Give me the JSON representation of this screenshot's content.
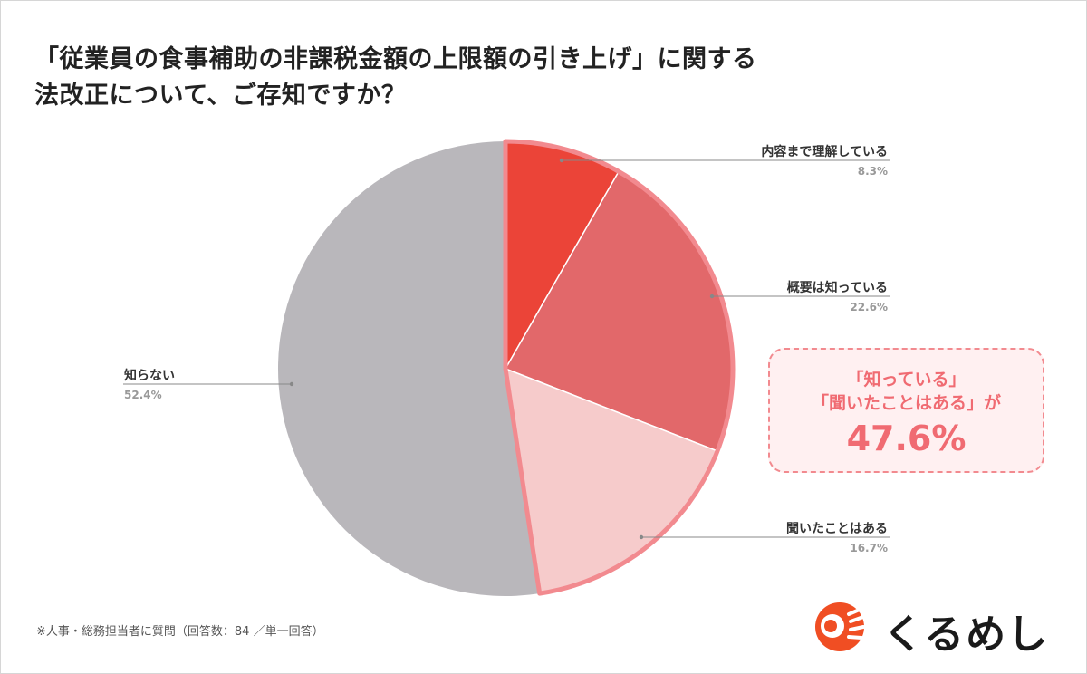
{
  "title_lines": [
    "「従業員の食事補助の非課税金額の上限額の引き上げ」に関する",
    "法改正について、ご存知ですか？"
  ],
  "chart_data": {
    "type": "pie",
    "title": "「従業員の食事補助の非課税金額の上限額の引き上げ」に関する法改正について、ご存知ですか？",
    "unit": "%",
    "slices": [
      {
        "label": "内容まで理解している",
        "value": 8.3,
        "value_label": "8.3%",
        "color": "#eb4438"
      },
      {
        "label": "概要は知っている",
        "value": 22.6,
        "value_label": "22.6%",
        "color": "#e2686a"
      },
      {
        "label": "聞いたことはある",
        "value": 16.7,
        "value_label": "16.7%",
        "color": "#f6cbcb"
      },
      {
        "label": "知らない",
        "value": 52.4,
        "value_label": "52.4%",
        "color": "#b9b7bb"
      }
    ],
    "start": "top",
    "direction": "clockwise",
    "highlight_color": "#f28a8f"
  },
  "callout": {
    "line1": "「知っている」",
    "line2": "「聞いたことはある」が",
    "value": "47.6%"
  },
  "footnote": "※人事・総務担当者に質問（回答数：84 ／単一回答）",
  "logo": {
    "text": "くるめし",
    "icon": "bowl-eye-logo-icon",
    "color": "#f04e23"
  }
}
